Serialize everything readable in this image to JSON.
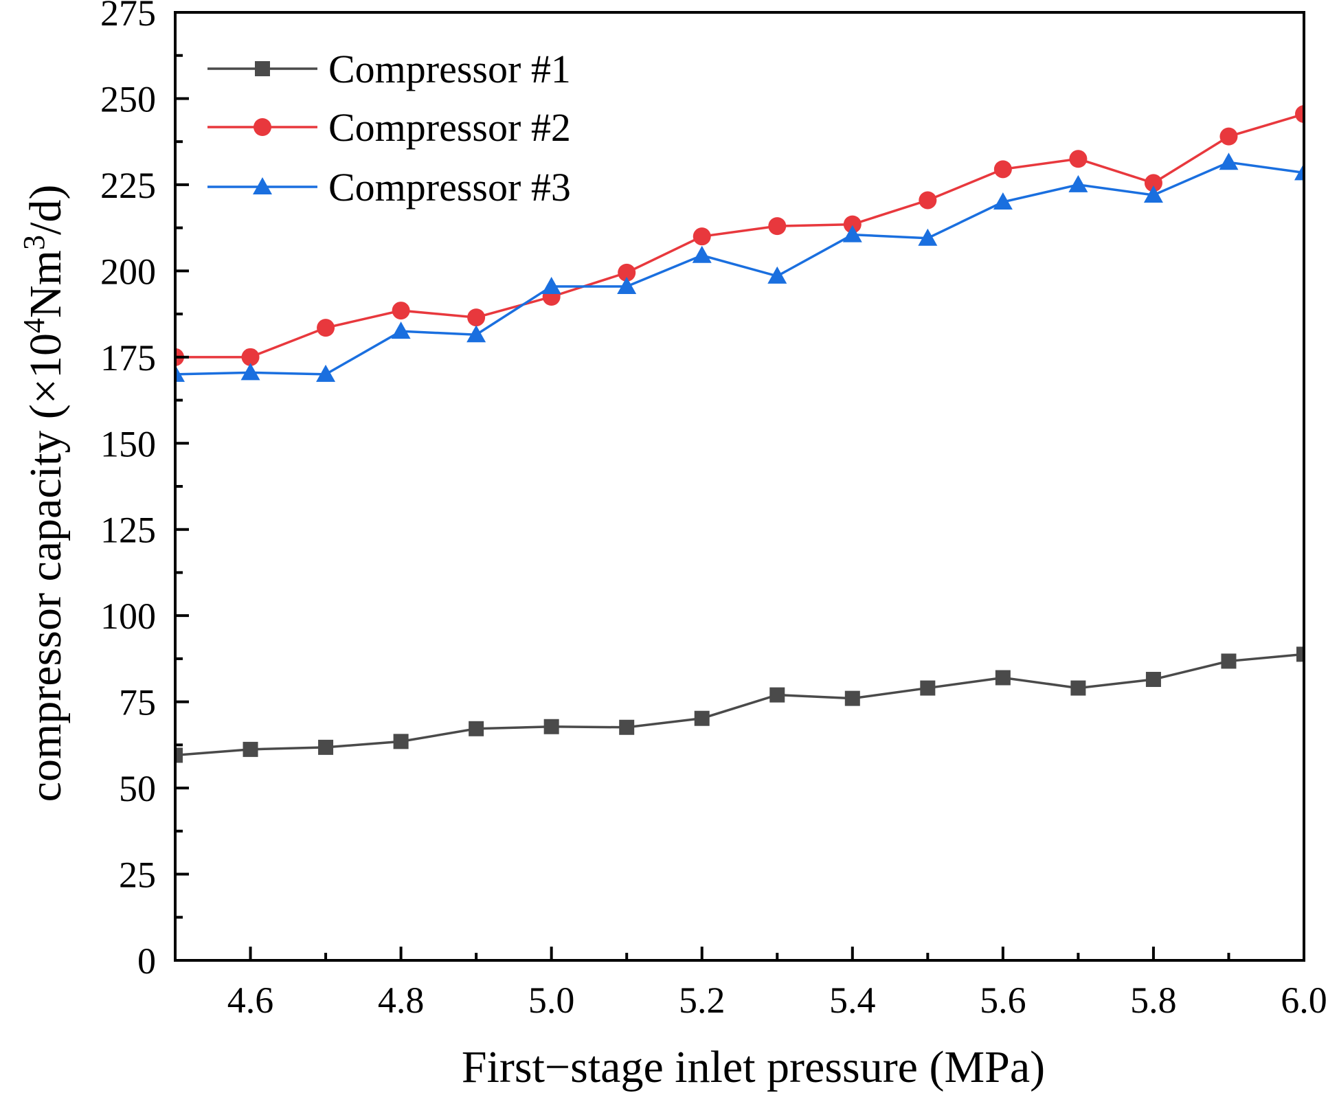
{
  "chart_data": {
    "type": "line",
    "title": "",
    "xlabel": "First−stage inlet pressure (MPa)",
    "ylabel": {
      "parts": [
        {
          "text": "compressor capacity (×10",
          "sup": false
        },
        {
          "text": "4",
          "sup": true
        },
        {
          "text": "Nm",
          "sup": false
        },
        {
          "text": "3",
          "sup": true
        },
        {
          "text": "/d)",
          "sup": false
        }
      ]
    },
    "xlim": [
      4.5,
      6.0
    ],
    "ylim": [
      0,
      275
    ],
    "x_ticks": [
      4.6,
      4.8,
      5.0,
      5.2,
      5.4,
      5.6,
      5.8,
      6.0
    ],
    "x_tick_labels": [
      "4.6",
      "4.8",
      "5.0",
      "5.2",
      "5.4",
      "5.6",
      "5.8",
      "6.0"
    ],
    "x_minor_ticks": [
      4.5,
      4.7,
      4.9,
      5.1,
      5.3,
      5.5,
      5.7,
      5.9
    ],
    "y_ticks": [
      0,
      25,
      50,
      75,
      100,
      125,
      150,
      175,
      200,
      225,
      250,
      275
    ],
    "y_tick_labels": [
      "0",
      "25",
      "50",
      "75",
      "100",
      "125",
      "150",
      "175",
      "200",
      "225",
      "250",
      "275"
    ],
    "y_minor_ticks": [
      12.5,
      37.5,
      62.5,
      87.5,
      112.5,
      137.5,
      162.5,
      187.5,
      212.5,
      237.5,
      262.5
    ],
    "grid": false,
    "legend_position": "top-left",
    "x": [
      4.5,
      4.6,
      4.7,
      4.8,
      4.9,
      5.0,
      5.1,
      5.2,
      5.3,
      5.4,
      5.5,
      5.6,
      5.7,
      5.8,
      5.9,
      6.0
    ],
    "series": [
      {
        "name": "Compressor #1",
        "color": "#4a4a4a",
        "marker": "square",
        "values": [
          59.5,
          61.2,
          61.8,
          63.5,
          67.2,
          67.8,
          67.6,
          70.2,
          77.0,
          76.0,
          79.0,
          82.0,
          79.0,
          81.5,
          86.8,
          88.8
        ]
      },
      {
        "name": "Compressor #2",
        "color": "#e8383d",
        "marker": "circle",
        "values": [
          175.0,
          175.0,
          183.5,
          188.5,
          186.5,
          192.5,
          199.5,
          210.0,
          213.0,
          213.5,
          220.5,
          229.5,
          232.5,
          225.5,
          239.0,
          245.5
        ]
      },
      {
        "name": "Compressor #3",
        "color": "#1a6fdf",
        "marker": "triangle",
        "values": [
          170.0,
          170.5,
          170.0,
          182.5,
          181.5,
          195.5,
          195.5,
          204.5,
          198.5,
          210.5,
          209.5,
          220.0,
          225.0,
          222.0,
          231.5,
          228.5
        ]
      }
    ]
  }
}
